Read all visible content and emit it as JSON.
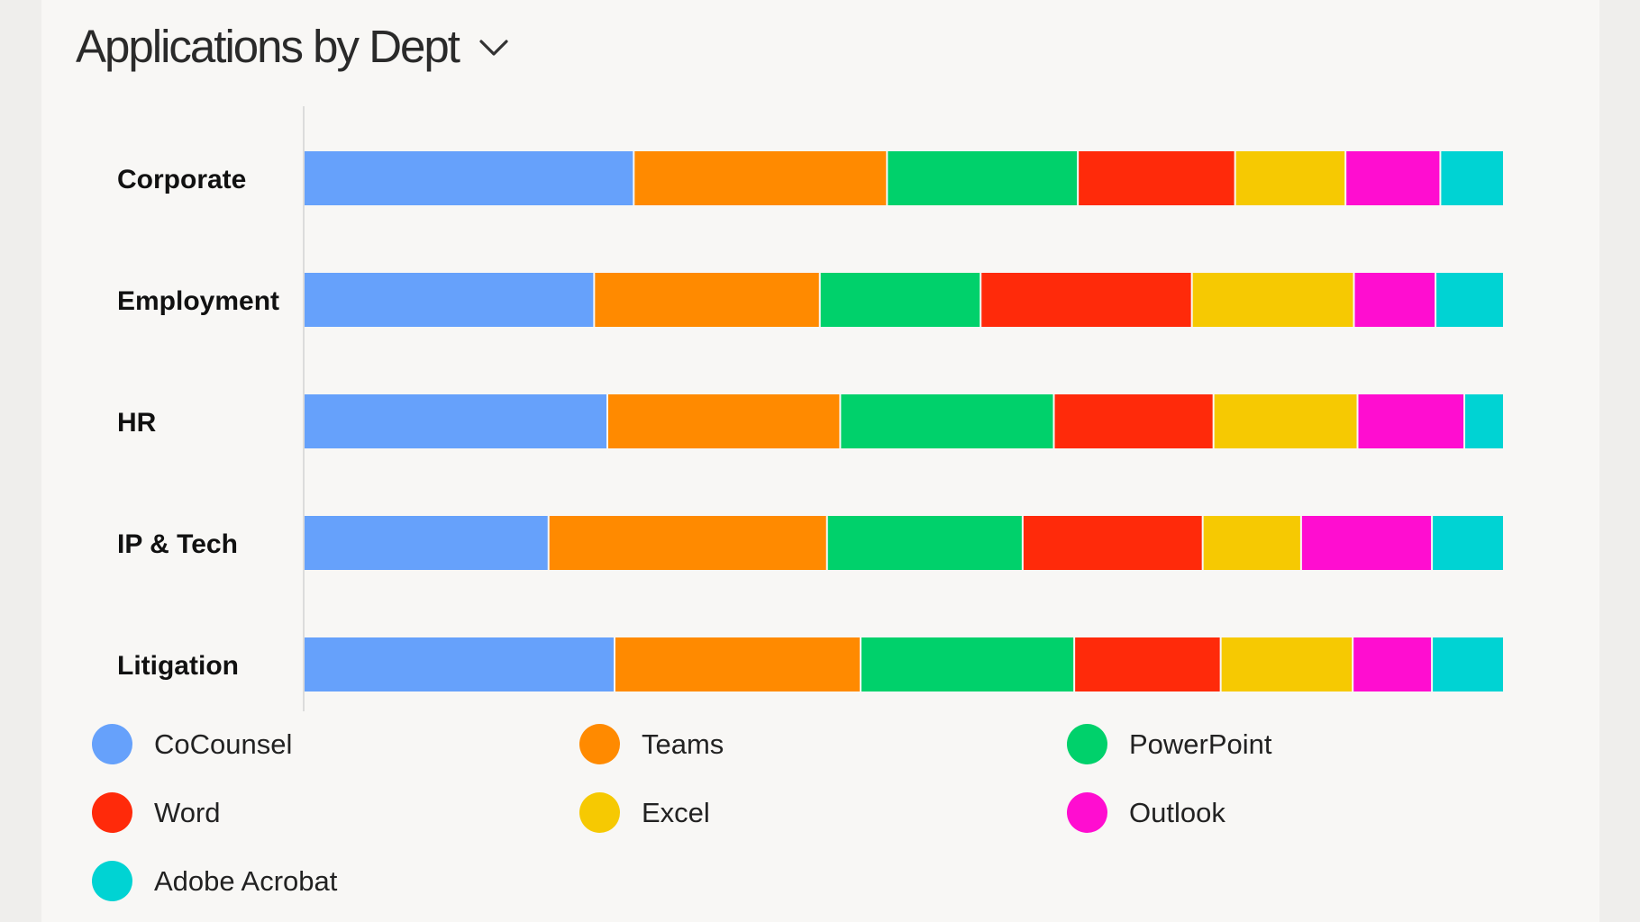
{
  "header": {
    "title": "Applications by Dept",
    "dropdown_icon": "chevron-down-icon"
  },
  "chart_data": {
    "type": "bar",
    "orientation": "horizontal",
    "stacked": true,
    "title": "Applications by Dept",
    "xlabel": "",
    "ylabel": "",
    "grid": false,
    "legend_position": "bottom",
    "categories": [
      "Corporate",
      "Employment",
      "HR",
      "IP & Tech",
      "Litigation"
    ],
    "series": [
      {
        "name": "CoCounsel",
        "color": "#66a1fb",
        "values": [
          27.5,
          24.2,
          25.3,
          20.4,
          25.9
        ]
      },
      {
        "name": "Teams",
        "color": "#ff8a00",
        "values": [
          21.1,
          18.8,
          19.4,
          23.2,
          20.5
        ]
      },
      {
        "name": "PowerPoint",
        "color": "#00d16b",
        "values": [
          15.9,
          13.4,
          17.8,
          16.3,
          17.8
        ]
      },
      {
        "name": "Word",
        "color": "#ff2a0a",
        "values": [
          13.1,
          17.6,
          13.3,
          15.0,
          12.2
        ]
      },
      {
        "name": "Excel",
        "color": "#f6c902",
        "values": [
          9.2,
          13.5,
          12.0,
          8.2,
          11.0
        ]
      },
      {
        "name": "Outlook",
        "color": "#ff0dd0",
        "values": [
          7.9,
          6.8,
          8.9,
          10.9,
          6.6
        ]
      },
      {
        "name": "Adobe Acrobat",
        "color": "#00d3d3",
        "values": [
          5.3,
          5.7,
          3.3,
          6.0,
          6.0
        ]
      }
    ]
  }
}
